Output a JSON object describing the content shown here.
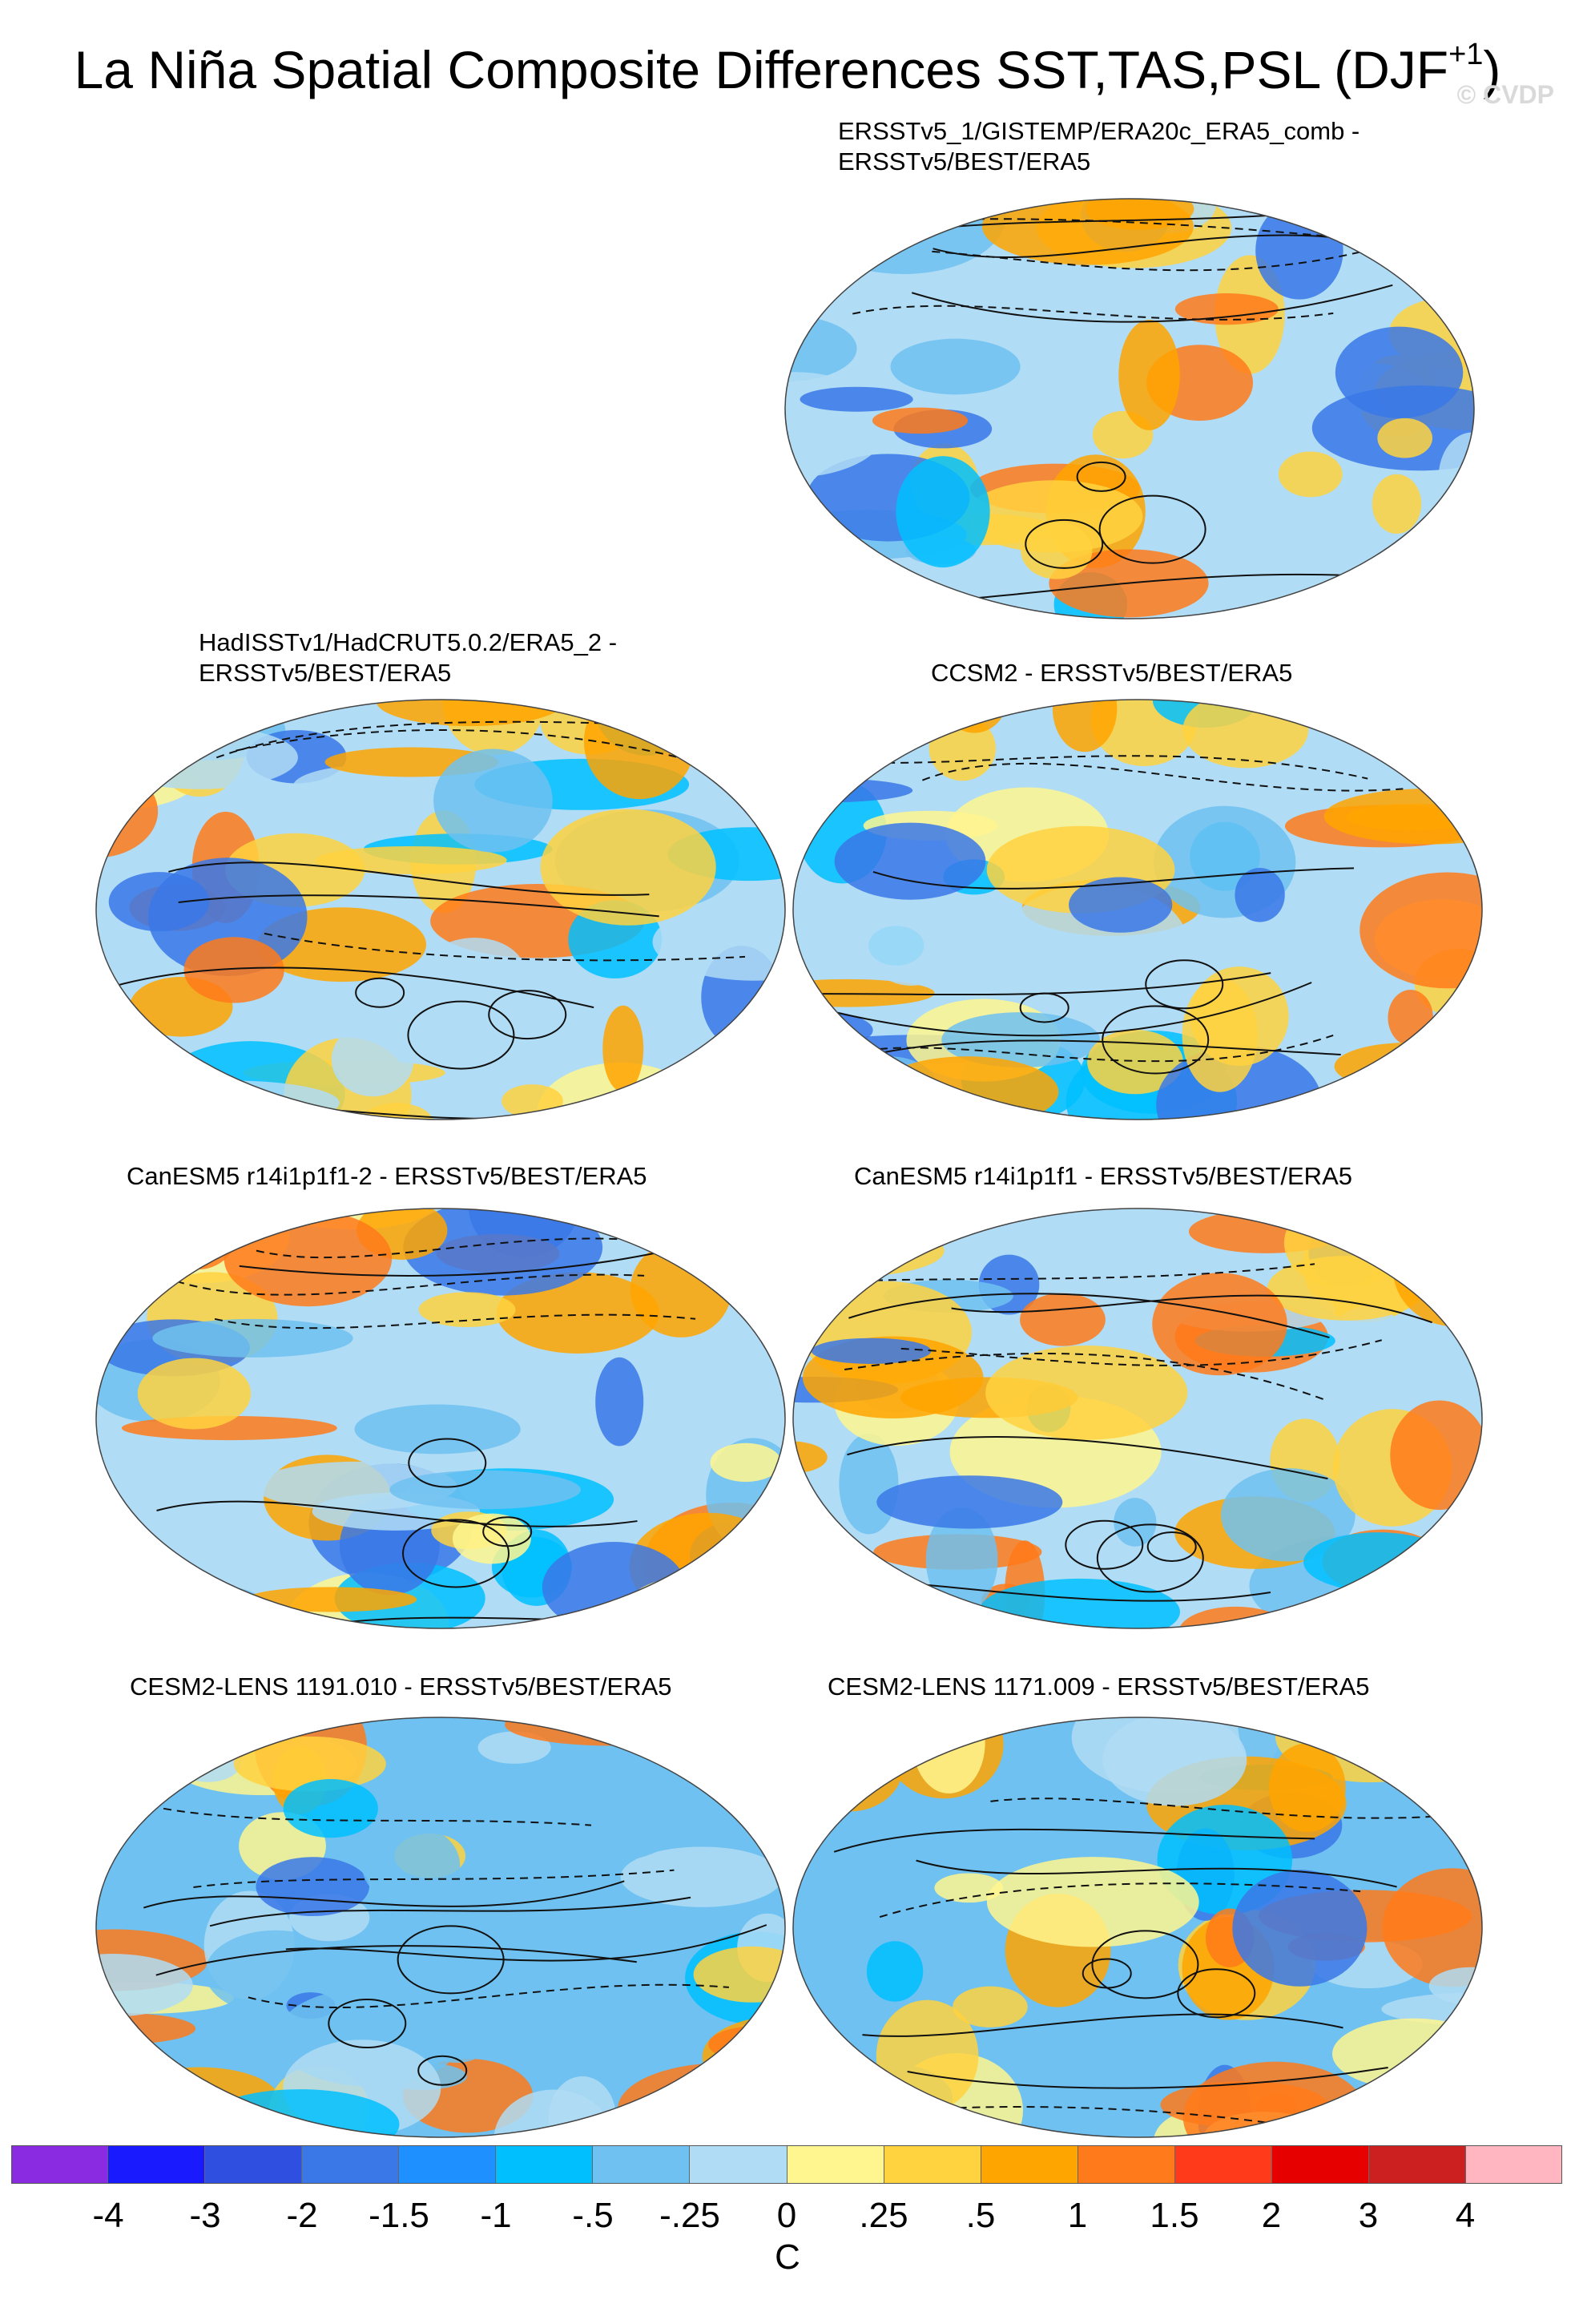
{
  "figure": {
    "title": "La Niña Spatial Composite Differences SST,TAS,PSL (DJF",
    "title_superscript": "+1",
    "title_close": ")",
    "watermark": "© CVDP"
  },
  "panels": [
    {
      "id": "ersst-comb",
      "title_line1": "ERSSTv5_1/GISTEMP/ERA20c_ERA5_comb -",
      "title_line2": "ERSSTv5/BEST/ERA5"
    },
    {
      "id": "hadisst",
      "title_line1": "HadISSTv1/HadCRUT5.0.2/ERA5_2 -",
      "title_line2": "ERSSTv5/BEST/ERA5"
    },
    {
      "id": "ccsm2",
      "title_line1": "CCSM2 - ERSSTv5/BEST/ERA5",
      "title_line2": ""
    },
    {
      "id": "canesm5-2",
      "title_line1": "CanESM5 r14i1p1f1-2 - ERSSTv5/BEST/ERA5",
      "title_line2": ""
    },
    {
      "id": "canesm5",
      "title_line1": "CanESM5 r14i1p1f1 - ERSSTv5/BEST/ERA5",
      "title_line2": ""
    },
    {
      "id": "cesm2-1191",
      "title_line1": "CESM2-LENS 1191.010 - ERSSTv5/BEST/ERA5",
      "title_line2": ""
    },
    {
      "id": "cesm2-1171",
      "title_line1": "CESM2-LENS 1171.009 - ERSSTv5/BEST/ERA5",
      "title_line2": ""
    }
  ],
  "colorbar": {
    "units": "C",
    "labels": [
      "-4",
      "-3",
      "-2",
      "-1.5",
      "-1",
      "-.5",
      "-.25",
      "0",
      ".25",
      ".5",
      "1",
      "1.5",
      "2",
      "3",
      "4"
    ],
    "colors": [
      "#8a2be2",
      "#1a1aff",
      "#2e4fe0",
      "#3a78e8",
      "#1e90ff",
      "#00bfff",
      "#6ec1f0",
      "#b0dcf5",
      "#fff68f",
      "#ffd23f",
      "#ffa500",
      "#ff7a1a",
      "#ff3a1a",
      "#e60000",
      "#cc1f1f",
      "#ffb6c1"
    ]
  }
}
